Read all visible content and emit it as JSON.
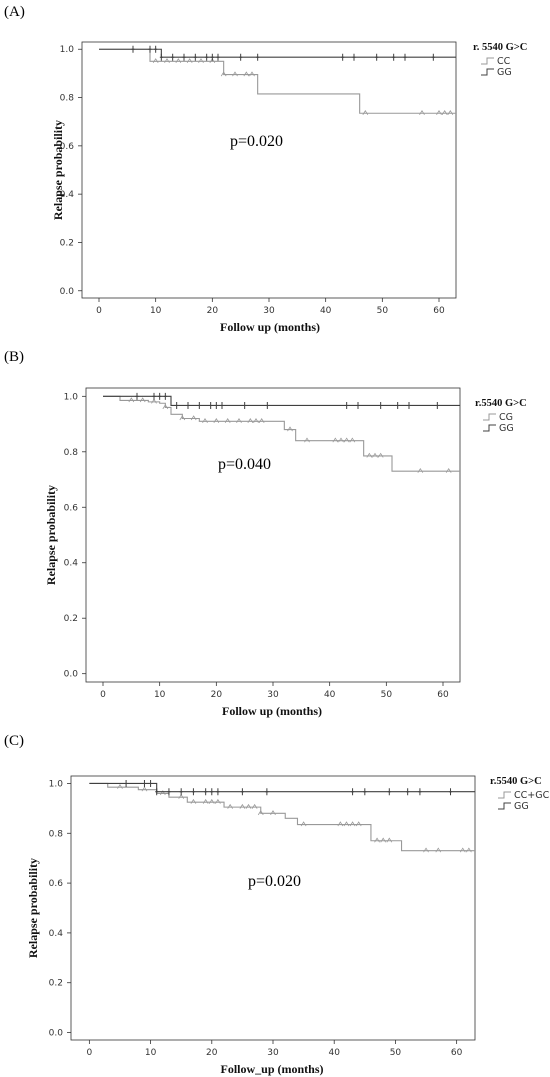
{
  "chart_data": [
    {
      "type": "line",
      "panel_label": "(A)",
      "xlabel": "Follow up (months)",
      "ylabel": "Relapse probability",
      "xticks": [
        "0",
        "10",
        "20",
        "30",
        "40",
        "50",
        "60"
      ],
      "yticks": [
        "0.0",
        "0.2",
        "0.4",
        "0.6",
        "0.8",
        "1.0"
      ],
      "xlim": [
        -3,
        63
      ],
      "ylim": [
        -0.03,
        1.03
      ],
      "annotation": "p=0.020",
      "legend_title": "r. 5540 G>C",
      "legend_position": "top-right",
      "series": [
        {
          "name": "CC",
          "color": "#999999",
          "style": "step",
          "x": [
            0,
            9,
            22,
            28,
            46,
            63
          ],
          "y": [
            1.0,
            0.95,
            0.895,
            0.815,
            0.735,
            0.735
          ],
          "censored_x": [
            10,
            12,
            14,
            16,
            18,
            20,
            22,
            24,
            26,
            27,
            47,
            57,
            60,
            61,
            62
          ]
        },
        {
          "name": "GG",
          "color": "#404040",
          "style": "step",
          "x": [
            0,
            11,
            63
          ],
          "y": [
            1.0,
            0.967,
            0.967
          ],
          "censored_x": [
            6,
            9,
            10,
            11,
            13,
            15,
            17,
            19,
            20,
            21,
            25,
            28,
            43,
            45,
            49,
            52,
            54,
            59
          ]
        }
      ]
    },
    {
      "type": "line",
      "panel_label": "(B)",
      "xlabel": "Follow up (months)",
      "ylabel": "Relapse probability",
      "xticks": [
        "0",
        "10",
        "20",
        "30",
        "40",
        "50",
        "60"
      ],
      "yticks": [
        "0.0",
        "0.2",
        "0.4",
        "0.6",
        "0.8",
        "1.0"
      ],
      "xlim": [
        -3,
        63
      ],
      "ylim": [
        -0.03,
        1.03
      ],
      "annotation": "p=0.040",
      "legend_title": "r.5540 G>C",
      "legend_position": "top-right",
      "series": [
        {
          "name": "CG",
          "color": "#999999",
          "style": "step",
          "x": [
            0,
            3,
            8,
            10,
            11,
            12,
            14,
            17,
            32,
            34,
            46,
            51,
            63
          ],
          "y": [
            1.0,
            0.985,
            0.98,
            0.975,
            0.96,
            0.935,
            0.92,
            0.91,
            0.88,
            0.84,
            0.785,
            0.73,
            0.73
          ],
          "censored_x": [
            5,
            7,
            9,
            11,
            14,
            16,
            18,
            20,
            22,
            24,
            26,
            27,
            28,
            33,
            36,
            41,
            42,
            43,
            44,
            47,
            48,
            49,
            56,
            61
          ]
        },
        {
          "name": "GG",
          "color": "#404040",
          "style": "step",
          "x": [
            0,
            12,
            63
          ],
          "y": [
            1.0,
            0.967,
            0.967
          ],
          "censored_x": [
            6,
            9,
            10,
            11,
            13,
            15,
            17,
            19,
            20,
            21,
            25,
            29,
            43,
            45,
            49,
            52,
            54,
            59
          ]
        }
      ]
    },
    {
      "type": "line",
      "panel_label": "(C)",
      "xlabel": "Follow_up (months)",
      "ylabel": "Relapse probability",
      "xticks": [
        "0",
        "10",
        "20",
        "30",
        "40",
        "50",
        "60"
      ],
      "yticks": [
        "0.0",
        "0.2",
        "0.4",
        "0.6",
        "0.8",
        "1.0"
      ],
      "xlim": [
        -3,
        63
      ],
      "ylim": [
        -0.03,
        1.03
      ],
      "annotation": "p=0.020",
      "legend_title": "r.5540 G>C",
      "legend_position": "top-right",
      "series": [
        {
          "name": "CC+GC",
          "color": "#999999",
          "style": "step",
          "x": [
            0,
            3,
            8,
            11,
            13,
            16,
            22,
            28,
            32,
            34,
            46,
            51,
            63
          ],
          "y": [
            1.0,
            0.985,
            0.975,
            0.96,
            0.945,
            0.925,
            0.905,
            0.88,
            0.86,
            0.835,
            0.77,
            0.73,
            0.73
          ],
          "censored_x": [
            5,
            9,
            12,
            15,
            17,
            19,
            20,
            21,
            23,
            25,
            26,
            27,
            28,
            30,
            35,
            41,
            42,
            43,
            44,
            47,
            48,
            49,
            55,
            57,
            61,
            62
          ]
        },
        {
          "name": "GG",
          "color": "#404040",
          "style": "step",
          "x": [
            0,
            11,
            63
          ],
          "y": [
            1.0,
            0.967,
            0.967
          ],
          "censored_x": [
            6,
            9,
            10,
            11,
            13,
            15,
            17,
            19,
            20,
            21,
            25,
            29,
            43,
            45,
            49,
            52,
            54,
            59
          ]
        }
      ]
    }
  ]
}
